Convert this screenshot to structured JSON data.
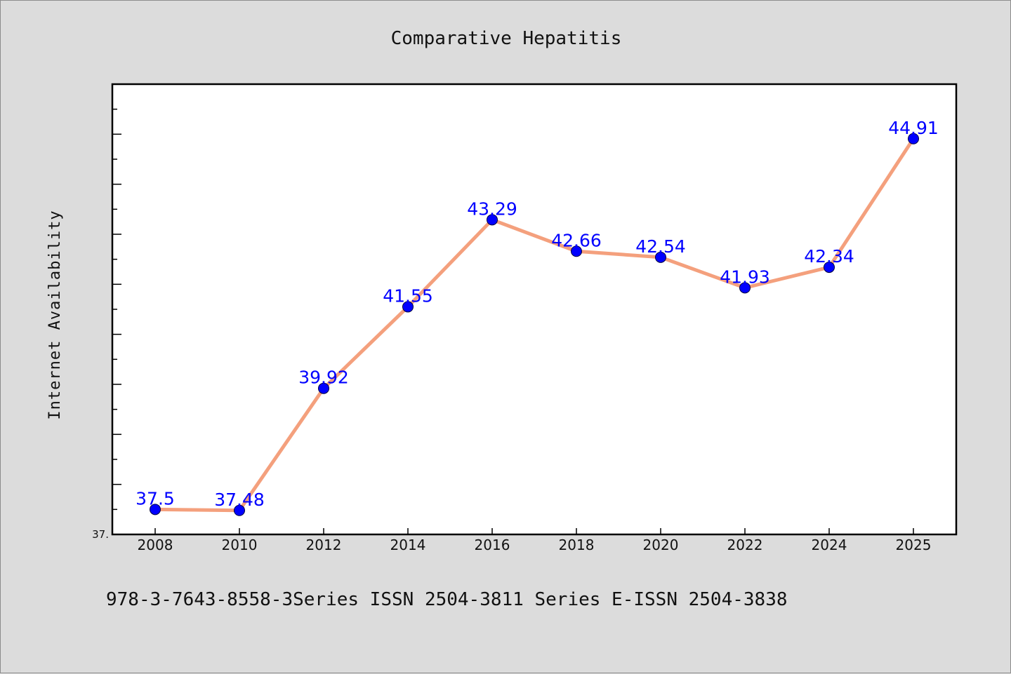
{
  "chart_data": {
    "type": "line",
    "title": "Comparative Hepatitis",
    "xlabel": "",
    "ylabel": "Internet Availability",
    "categories": [
      "2008",
      "2010",
      "2012",
      "2014",
      "2016",
      "2018",
      "2020",
      "2022",
      "2024",
      "2025"
    ],
    "series": [
      {
        "values": [
          37.5,
          37.48,
          39.92,
          41.55,
          43.29,
          42.66,
          42.54,
          41.93,
          42.34,
          44.91
        ],
        "labels": [
          "37.5",
          "37.48",
          "39.92",
          "41.55",
          "43.29",
          "42.66",
          "42.54",
          "41.93",
          "42.34",
          "44.91"
        ]
      }
    ],
    "ylim": [
      37.0,
      46.0
    ],
    "y_min_label": "37.",
    "grid": false,
    "legend": "none",
    "colors": {
      "line": "#f4a07d",
      "marker": "#0000ff",
      "data_label": "#0000ff",
      "background": "#dcdcdc",
      "plot_background": "#ffffff"
    }
  },
  "footer": {
    "text": "978-3-7643-8558-3Series ISSN 2504-3811 Series E-ISSN 2504-3838"
  }
}
